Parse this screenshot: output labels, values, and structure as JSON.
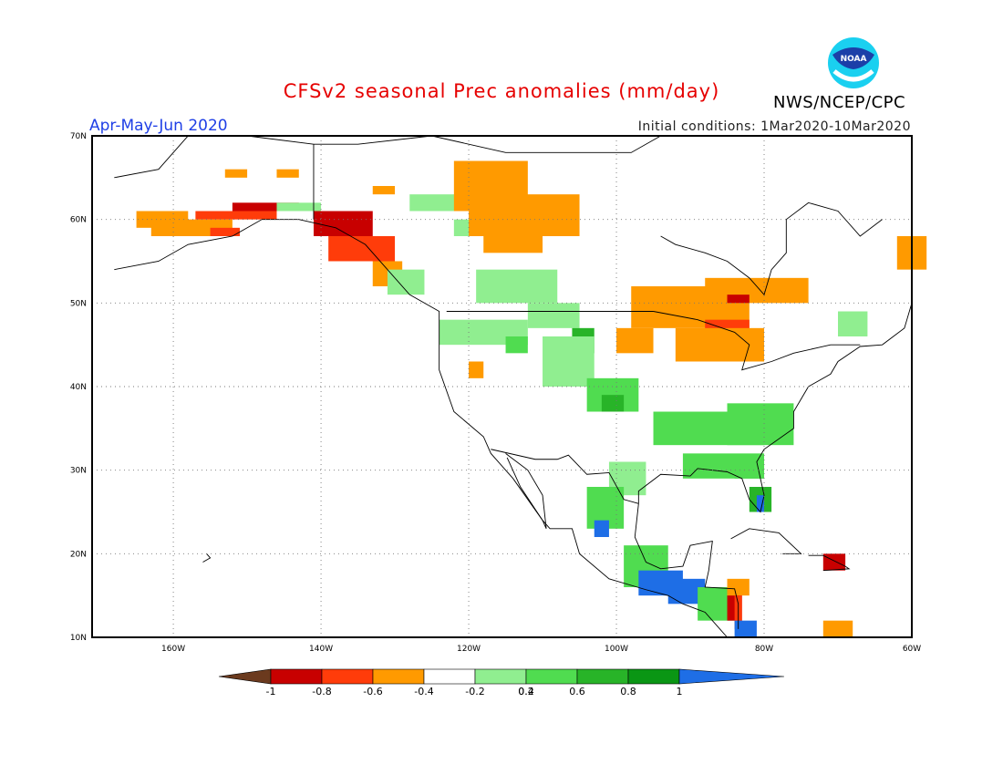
{
  "header": {
    "title": "CFSv2 seasonal Prec anomalies (mm/day)",
    "period": "Apr-May-Jun 2020",
    "initial_conditions": "Initial conditions: 1Mar2020-10Mar2020",
    "agency": "NWS/NCEP/CPC",
    "logo_text": "NOAA"
  },
  "axes": {
    "lat_labels": [
      "70N",
      "60N",
      "50N",
      "40N",
      "30N",
      "20N",
      "10N"
    ],
    "lon_labels": [
      "160W",
      "140W",
      "120W",
      "100W",
      "80W",
      "60W"
    ]
  },
  "colorbar": {
    "ticks": [
      "-1",
      "-0.8",
      "-0.6",
      "-0.4",
      "-0.2",
      "0.2",
      "0.4",
      "0.6",
      "0.8",
      "1"
    ],
    "colors": [
      "#6b3a1e",
      "#c80000",
      "#ff3c0a",
      "#ff9a00",
      "#ffffff",
      "#90ee90",
      "#50dc50",
      "#28b428",
      "#0a9614",
      "#1e6ee6"
    ]
  }
}
